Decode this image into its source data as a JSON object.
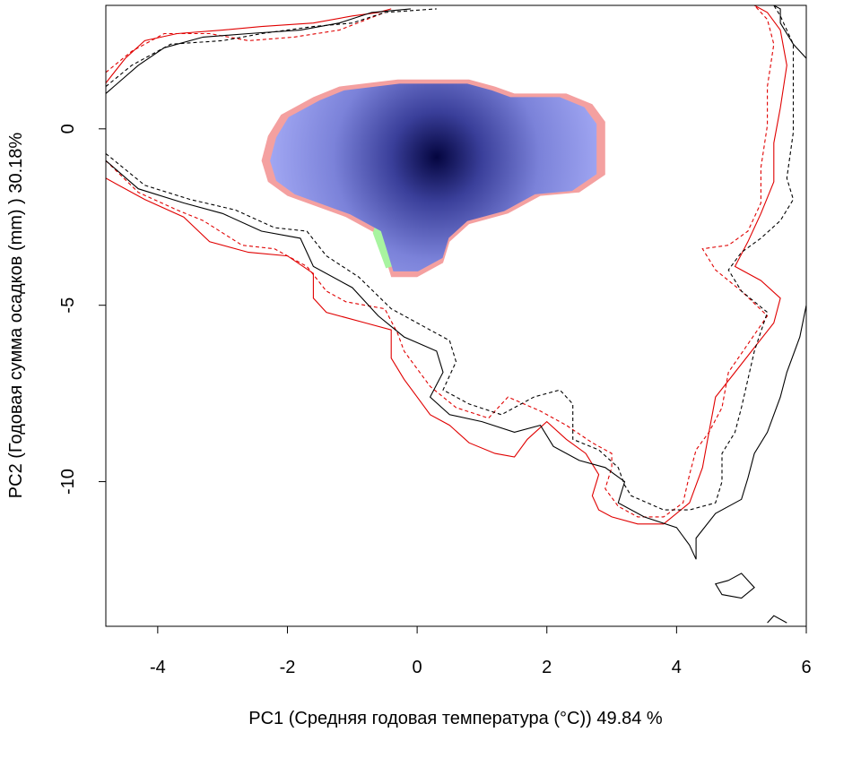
{
  "chart_data": {
    "type": "heatmap",
    "title": "",
    "xlabel": "PC1 (Средняя годовая температура (°C)) 49.84 %",
    "ylabel": "PC2 (Годовая сумма осадков  (mm) ) 30.18%",
    "xlim": [
      -4.8,
      6.0
    ],
    "ylim": [
      -14.1,
      3.5
    ],
    "x_ticks": [
      {
        "value": -4,
        "label": "-4"
      },
      {
        "value": -2,
        "label": "-2"
      },
      {
        "value": 0,
        "label": "0"
      },
      {
        "value": 2,
        "label": "2"
      },
      {
        "value": 4,
        "label": "4"
      },
      {
        "value": 6,
        "label": "6"
      }
    ],
    "y_ticks": [
      {
        "value": 0,
        "label": "0"
      },
      {
        "value": -5,
        "label": "-5"
      },
      {
        "value": -10,
        "label": "-10"
      }
    ],
    "colors": {
      "density_low": "#a0a6f2",
      "density_high": "#04053f",
      "niche_only_a": "#f4a0a0",
      "niche_only_b": "#a8f4a0",
      "contour_red": "#e00000",
      "contour_black": "#000000"
    },
    "density_peak": {
      "x": 0.3,
      "y": -0.8
    },
    "niche_boundary": [
      [
        -0.5,
        -3.6
      ],
      [
        -0.6,
        -3.0
      ],
      [
        -1.1,
        -2.5
      ],
      [
        -2.0,
        -1.9
      ],
      [
        -2.3,
        -1.5
      ],
      [
        -2.4,
        -0.9
      ],
      [
        -2.3,
        -0.2
      ],
      [
        -2.1,
        0.4
      ],
      [
        -1.6,
        0.9
      ],
      [
        -1.2,
        1.2
      ],
      [
        -0.3,
        1.4
      ],
      [
        0.8,
        1.4
      ],
      [
        1.2,
        1.2
      ],
      [
        1.5,
        1.0
      ],
      [
        2.3,
        1.0
      ],
      [
        2.7,
        0.7
      ],
      [
        2.9,
        0.2
      ],
      [
        2.9,
        -1.3
      ],
      [
        2.5,
        -1.8
      ],
      [
        1.9,
        -1.9
      ],
      [
        1.4,
        -2.4
      ],
      [
        0.8,
        -2.7
      ],
      [
        0.5,
        -3.2
      ],
      [
        0.4,
        -3.8
      ],
      [
        0.0,
        -4.2
      ],
      [
        -0.4,
        -4.2
      ]
    ],
    "niche_boundary_b": [
      [
        -0.6,
        -2.9
      ],
      [
        -0.3,
        -1.1
      ],
      [
        0.5,
        -0.1
      ],
      [
        1.5,
        0.5
      ],
      [
        2.0,
        0.6
      ],
      [
        2.6,
        0.4
      ],
      [
        2.7,
        -0.9
      ],
      [
        2.2,
        -1.5
      ],
      [
        1.5,
        -1.9
      ],
      [
        1.0,
        -2.3
      ],
      [
        0.6,
        -2.5
      ],
      [
        0.2,
        -3.3
      ],
      [
        -0.2,
        -3.8
      ],
      [
        -0.4,
        -3.9
      ]
    ],
    "series": [
      {
        "line_style": "solid",
        "color": "#e00000",
        "points": [
          [
            -4.8,
            1.3
          ],
          [
            -4.5,
            2.0
          ],
          [
            -4.2,
            2.5
          ],
          [
            -3.7,
            2.7
          ],
          [
            -3.0,
            2.8
          ],
          [
            -2.4,
            2.9
          ],
          [
            -1.6,
            3.0
          ],
          [
            -1.0,
            3.2
          ],
          [
            -0.6,
            3.3
          ],
          [
            -0.4,
            3.4
          ],
          [
            -4.8,
            -1.4
          ],
          [
            -4.2,
            -2.0
          ],
          [
            -3.6,
            -2.5
          ],
          [
            -3.2,
            -3.2
          ],
          [
            -2.6,
            -3.5
          ],
          [
            -2.0,
            -3.6
          ],
          [
            -1.6,
            -4.1
          ],
          [
            -1.6,
            -4.8
          ],
          [
            -1.4,
            -5.2
          ],
          [
            -0.8,
            -5.5
          ],
          [
            -0.4,
            -5.7
          ],
          [
            -0.4,
            -6.5
          ],
          [
            -0.2,
            -7.1
          ],
          [
            0.0,
            -7.6
          ],
          [
            0.2,
            -8.1
          ],
          [
            0.5,
            -8.4
          ],
          [
            0.8,
            -8.9
          ],
          [
            1.2,
            -9.2
          ],
          [
            1.5,
            -9.3
          ],
          [
            1.7,
            -8.8
          ],
          [
            2.0,
            -8.3
          ],
          [
            2.3,
            -8.8
          ],
          [
            2.6,
            -9.2
          ],
          [
            2.8,
            -9.8
          ],
          [
            2.7,
            -10.4
          ],
          [
            2.8,
            -10.8
          ],
          [
            3.0,
            -11.0
          ],
          [
            3.4,
            -11.2
          ],
          [
            3.8,
            -11.2
          ],
          [
            4.2,
            -10.6
          ],
          [
            4.4,
            -9.6
          ],
          [
            4.5,
            -8.6
          ],
          [
            4.6,
            -7.6
          ],
          [
            4.9,
            -6.9
          ],
          [
            5.2,
            -6.2
          ],
          [
            5.5,
            -5.5
          ],
          [
            5.6,
            -4.8
          ],
          [
            5.3,
            -4.3
          ],
          [
            4.9,
            -3.9
          ],
          [
            5.1,
            -3.2
          ],
          [
            5.3,
            -2.4
          ],
          [
            5.5,
            -1.5
          ],
          [
            5.5,
            -0.4
          ],
          [
            5.6,
            0.6
          ],
          [
            5.7,
            1.8
          ],
          [
            5.6,
            2.8
          ],
          [
            5.4,
            3.3
          ],
          [
            5.2,
            3.5
          ]
        ]
      },
      {
        "line_style": "dashed",
        "color": "#e00000",
        "points": [
          [
            -4.8,
            1.6
          ],
          [
            -4.4,
            2.2
          ],
          [
            -3.9,
            2.7
          ],
          [
            -3.2,
            2.7
          ],
          [
            -2.6,
            2.5
          ],
          [
            -1.9,
            2.6
          ],
          [
            -1.2,
            2.8
          ],
          [
            -0.5,
            3.3
          ],
          [
            -4.8,
            -0.9
          ],
          [
            -4.3,
            -1.8
          ],
          [
            -3.7,
            -2.3
          ],
          [
            -3.3,
            -2.6
          ],
          [
            -2.7,
            -3.3
          ],
          [
            -2.2,
            -3.4
          ],
          [
            -1.7,
            -3.9
          ],
          [
            -1.4,
            -4.6
          ],
          [
            -1.1,
            -4.9
          ],
          [
            -0.5,
            -5.1
          ],
          [
            -0.3,
            -5.8
          ],
          [
            -0.2,
            -6.3
          ],
          [
            0.2,
            -7.3
          ],
          [
            0.6,
            -7.9
          ],
          [
            1.1,
            -8.2
          ],
          [
            1.4,
            -7.6
          ],
          [
            1.9,
            -8.0
          ],
          [
            2.3,
            -8.4
          ],
          [
            2.7,
            -8.9
          ],
          [
            3.0,
            -9.2
          ],
          [
            3.0,
            -9.6
          ],
          [
            2.9,
            -10.2
          ],
          [
            3.1,
            -10.7
          ],
          [
            3.4,
            -11.0
          ],
          [
            3.8,
            -11.0
          ],
          [
            4.1,
            -10.6
          ],
          [
            4.2,
            -9.8
          ],
          [
            4.3,
            -9.1
          ],
          [
            4.5,
            -8.6
          ],
          [
            4.7,
            -7.9
          ],
          [
            4.8,
            -6.9
          ],
          [
            5.1,
            -6.1
          ],
          [
            5.4,
            -5.3
          ],
          [
            5.0,
            -4.6
          ],
          [
            4.6,
            -4.0
          ],
          [
            4.4,
            -3.4
          ],
          [
            4.8,
            -3.3
          ],
          [
            5.1,
            -2.9
          ],
          [
            5.3,
            -2.1
          ],
          [
            5.3,
            -1.1
          ],
          [
            5.4,
            0.1
          ],
          [
            5.4,
            1.2
          ],
          [
            5.5,
            2.4
          ],
          [
            5.4,
            3.1
          ],
          [
            5.2,
            3.5
          ]
        ]
      },
      {
        "line_style": "solid",
        "color": "#000000",
        "points": [
          [
            -4.8,
            1.0
          ],
          [
            -4.3,
            1.8
          ],
          [
            -3.9,
            2.3
          ],
          [
            -3.3,
            2.6
          ],
          [
            -2.6,
            2.7
          ],
          [
            -1.8,
            2.8
          ],
          [
            -1.2,
            3.0
          ],
          [
            -0.7,
            3.3
          ],
          [
            -0.1,
            3.4
          ],
          [
            -4.8,
            -0.9
          ],
          [
            -4.3,
            -1.7
          ],
          [
            -3.6,
            -2.1
          ],
          [
            -3.0,
            -2.4
          ],
          [
            -2.4,
            -2.9
          ],
          [
            -1.8,
            -3.1
          ],
          [
            -1.6,
            -3.9
          ],
          [
            -1.0,
            -4.5
          ],
          [
            -0.6,
            -5.3
          ],
          [
            -0.2,
            -5.9
          ],
          [
            0.3,
            -6.3
          ],
          [
            0.4,
            -6.9
          ],
          [
            0.2,
            -7.6
          ],
          [
            0.5,
            -8.1
          ],
          [
            1.0,
            -8.3
          ],
          [
            1.5,
            -8.6
          ],
          [
            1.9,
            -8.4
          ],
          [
            2.1,
            -9.0
          ],
          [
            2.5,
            -9.4
          ],
          [
            2.9,
            -9.6
          ],
          [
            3.2,
            -10.0
          ],
          [
            3.1,
            -10.6
          ],
          [
            3.5,
            -11.0
          ],
          [
            4.0,
            -11.3
          ],
          [
            4.2,
            -11.8
          ],
          [
            4.3,
            -12.2
          ],
          [
            4.3,
            -11.6
          ],
          [
            4.6,
            -10.9
          ],
          [
            5.0,
            -10.5
          ],
          [
            5.1,
            -9.9
          ],
          [
            5.2,
            -9.2
          ],
          [
            5.4,
            -8.6
          ],
          [
            5.6,
            -7.6
          ],
          [
            5.7,
            -6.9
          ],
          [
            5.9,
            -5.9
          ],
          [
            6.0,
            -5.0
          ],
          [
            6.0,
            2.0
          ],
          [
            5.8,
            2.4
          ],
          [
            5.6,
            3.0
          ],
          [
            5.6,
            3.4
          ],
          [
            5.5,
            3.5
          ]
        ]
      },
      {
        "line_style": "dashed",
        "color": "#000000",
        "points": [
          [
            -4.8,
            1.2
          ],
          [
            -4.4,
            1.8
          ],
          [
            -3.8,
            2.4
          ],
          [
            -3.0,
            2.5
          ],
          [
            -2.4,
            2.7
          ],
          [
            -1.6,
            2.9
          ],
          [
            -1.0,
            3.0
          ],
          [
            -0.5,
            3.3
          ],
          [
            0.3,
            3.4
          ],
          [
            -4.8,
            -0.7
          ],
          [
            -4.2,
            -1.6
          ],
          [
            -3.5,
            -2.0
          ],
          [
            -2.8,
            -2.3
          ],
          [
            -2.2,
            -2.8
          ],
          [
            -1.7,
            -2.9
          ],
          [
            -1.4,
            -3.6
          ],
          [
            -0.9,
            -4.2
          ],
          [
            -0.4,
            -5.1
          ],
          [
            0.1,
            -5.6
          ],
          [
            0.5,
            -6.0
          ],
          [
            0.6,
            -6.6
          ],
          [
            0.4,
            -7.4
          ],
          [
            0.8,
            -7.8
          ],
          [
            1.3,
            -8.1
          ],
          [
            1.8,
            -7.6
          ],
          [
            2.2,
            -7.4
          ],
          [
            2.4,
            -7.8
          ],
          [
            2.4,
            -8.8
          ],
          [
            2.8,
            -9.1
          ],
          [
            3.1,
            -9.6
          ],
          [
            3.2,
            -10.1
          ],
          [
            3.3,
            -10.4
          ],
          [
            3.8,
            -10.8
          ],
          [
            4.2,
            -10.8
          ],
          [
            4.6,
            -10.6
          ],
          [
            4.7,
            -10.0
          ],
          [
            4.7,
            -9.2
          ],
          [
            4.9,
            -8.6
          ],
          [
            5.0,
            -7.9
          ],
          [
            5.1,
            -7.1
          ],
          [
            5.2,
            -6.3
          ],
          [
            5.4,
            -5.2
          ],
          [
            5.0,
            -4.6
          ],
          [
            4.8,
            -4.0
          ],
          [
            5.0,
            -3.5
          ],
          [
            5.3,
            -3.1
          ],
          [
            5.6,
            -2.6
          ],
          [
            5.8,
            -2.0
          ],
          [
            5.7,
            -1.4
          ],
          [
            5.8,
            -0.1
          ],
          [
            5.8,
            1.3
          ],
          [
            5.8,
            2.4
          ],
          [
            5.6,
            3.2
          ],
          [
            5.5,
            3.5
          ]
        ]
      },
      {
        "line_style": "solid",
        "color": "#000000",
        "points": [
          [
            4.8,
            -12.8
          ],
          [
            5.0,
            -12.6
          ],
          [
            5.2,
            -13.0
          ],
          [
            5.0,
            -13.3
          ],
          [
            4.7,
            -13.2
          ],
          [
            4.6,
            -12.9
          ],
          [
            4.8,
            -12.8
          ]
        ]
      },
      {
        "line_style": "solid",
        "color": "#000000",
        "points": [
          [
            5.4,
            -14.0
          ],
          [
            5.5,
            -13.8
          ],
          [
            5.7,
            -14.0
          ]
        ]
      }
    ]
  }
}
